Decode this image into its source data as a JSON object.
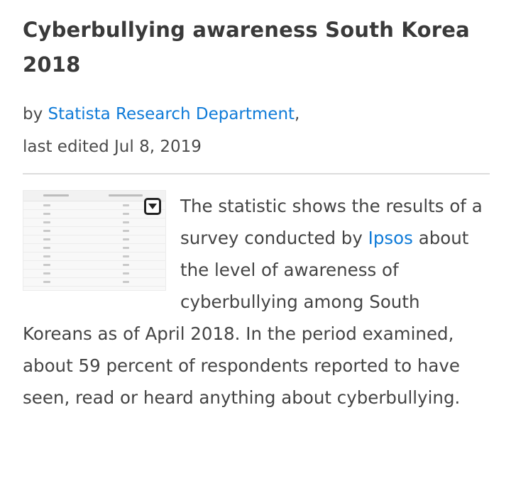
{
  "article": {
    "title": "Cyberbullying awareness South Korea 2018",
    "byline_prefix": "by ",
    "author": "Statista Research Department",
    "byline_suffix": ",",
    "edited": "last edited Jul 8, 2019",
    "description": {
      "part1": "The statistic shows the results of a survey conducted by ",
      "link": "Ipsos",
      "part2": " about the level of awareness of cyberbullying among South Koreans as of April 2018. In the period examined, about 59 percent of respondents reported to have seen, read or heard anything about cyberbullying."
    },
    "thumbnail": {
      "icon": "expand-icon"
    }
  },
  "colors": {
    "link": "#0f7bd8",
    "title": "#3a3a3a",
    "divider": "#dcdcdc"
  }
}
